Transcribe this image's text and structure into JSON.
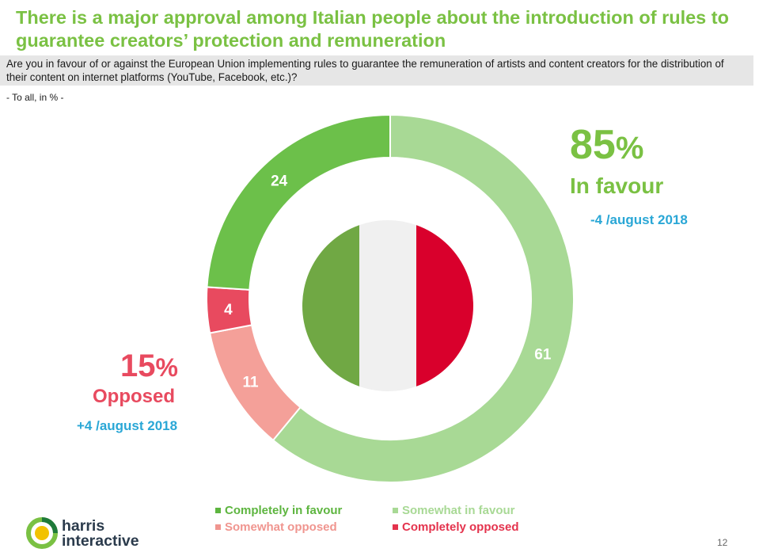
{
  "title": "There is a major approval among Italian people about the introduction of rules to guarantee creators’ protection and remuneration",
  "question": "Are you in favour of or against the European Union implementing rules to guarantee the remuneration of artists and content creators for the distribution of their content on internet platforms (YouTube, Facebook, etc.)?",
  "base_note": "- To all, in % -",
  "summary": {
    "favour": {
      "value": "85",
      "pct_sign": "%",
      "label": "In favour",
      "note": "-4 /august 2018"
    },
    "opposed": {
      "value": "15",
      "pct_sign": "%",
      "label": "Opposed",
      "note": "+4 /august 2018"
    }
  },
  "chart_data": {
    "type": "donut",
    "title": "",
    "segments": [
      {
        "name": "Somewhat in favour",
        "value": 61,
        "color": "#a8d995"
      },
      {
        "name": "Somewhat opposed",
        "value": 11,
        "color": "#f4a099"
      },
      {
        "name": "Completely opposed",
        "value": 4,
        "color": "#e84a5f"
      },
      {
        "name": "Completely in favour",
        "value": 24,
        "color": "#6cc04a"
      }
    ],
    "legend": [
      {
        "label": "Completely in favour",
        "color": "#5db53f"
      },
      {
        "label": "Somewhat in favour",
        "color": "#a8d995"
      },
      {
        "label": "Somewhat opposed",
        "color": "#f0958f"
      },
      {
        "label": "Completely opposed",
        "color": "#e4334d"
      }
    ],
    "center_image": "italian-flag",
    "flag_colors": [
      "#70a844",
      "#f0f0f0",
      "#d9002c"
    ]
  },
  "logo": {
    "line1": "harris",
    "line2": "interactive"
  },
  "page_number": "12",
  "colors": {
    "accent_green": "#7ac143",
    "accent_red": "#e84a5f",
    "accent_blue": "#2aa7d6"
  }
}
